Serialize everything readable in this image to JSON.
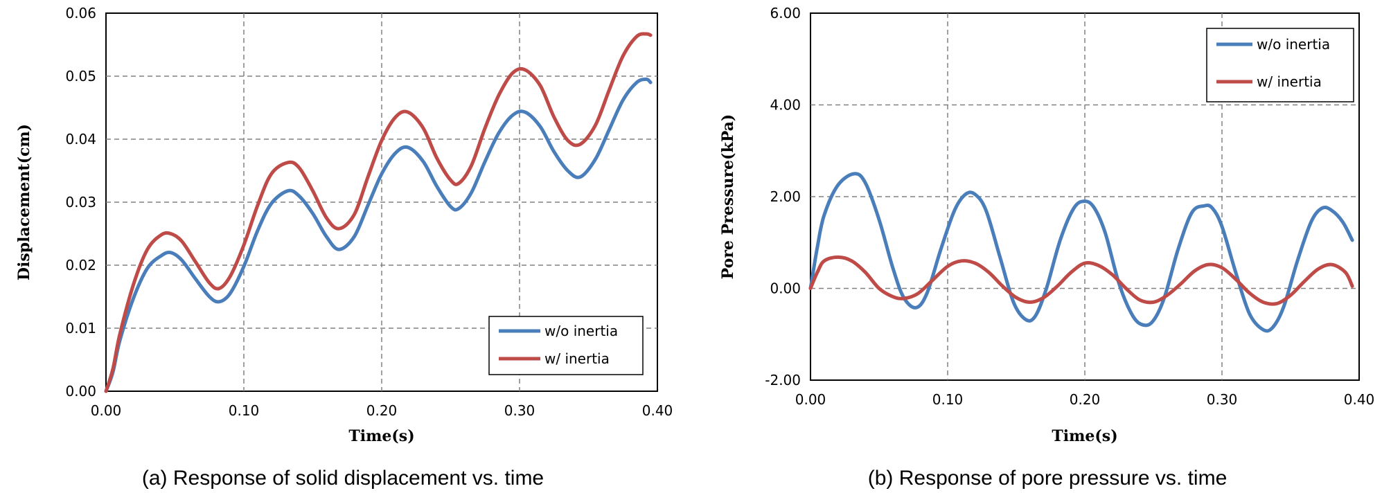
{
  "chart_data": [
    {
      "type": "line",
      "xlabel": "Time(s)",
      "ylabel": "Displacement(cm)",
      "caption": "(a) Response of solid displacement vs. time",
      "xlim": [
        0,
        0.4
      ],
      "ylim": [
        0,
        0.06
      ],
      "x_ticks": [
        "0.00",
        "0.10",
        "0.20",
        "0.30",
        "0.40"
      ],
      "y_ticks": [
        "0.00",
        "0.01",
        "0.02",
        "0.03",
        "0.04",
        "0.05",
        "0.06"
      ],
      "grid": true,
      "legend_position": "bottom-right",
      "series": [
        {
          "name": "w/o inertia",
          "color": "#4a7ebb",
          "x": [
            0,
            0.005,
            0.01,
            0.02,
            0.03,
            0.04,
            0.047,
            0.055,
            0.065,
            0.075,
            0.082,
            0.09,
            0.1,
            0.11,
            0.12,
            0.132,
            0.14,
            0.15,
            0.16,
            0.169,
            0.18,
            0.19,
            0.2,
            0.21,
            0.219,
            0.23,
            0.24,
            0.25,
            0.256,
            0.265,
            0.275,
            0.285,
            0.295,
            0.304,
            0.315,
            0.325,
            0.335,
            0.344,
            0.355,
            0.365,
            0.375,
            0.385,
            0.392,
            0.395
          ],
          "y": [
            0,
            0.003,
            0.008,
            0.0148,
            0.0195,
            0.0215,
            0.022,
            0.0208,
            0.0178,
            0.015,
            0.0142,
            0.0155,
            0.0198,
            0.0255,
            0.0298,
            0.0318,
            0.031,
            0.0282,
            0.0245,
            0.0225,
            0.0245,
            0.0295,
            0.0345,
            0.0378,
            0.0387,
            0.0365,
            0.0325,
            0.0293,
            0.029,
            0.0315,
            0.0365,
            0.041,
            0.0438,
            0.0443,
            0.042,
            0.038,
            0.035,
            0.034,
            0.0368,
            0.0415,
            0.0462,
            0.049,
            0.0495,
            0.049
          ]
        },
        {
          "name": "w/ inertia",
          "color": "#be4b48",
          "x": [
            0,
            0.005,
            0.01,
            0.02,
            0.03,
            0.04,
            0.047,
            0.055,
            0.065,
            0.075,
            0.082,
            0.09,
            0.1,
            0.11,
            0.12,
            0.132,
            0.14,
            0.15,
            0.16,
            0.169,
            0.18,
            0.19,
            0.2,
            0.21,
            0.219,
            0.23,
            0.24,
            0.25,
            0.256,
            0.265,
            0.275,
            0.285,
            0.295,
            0.304,
            0.315,
            0.325,
            0.335,
            0.344,
            0.355,
            0.365,
            0.375,
            0.385,
            0.392,
            0.395
          ],
          "y": [
            0,
            0.0035,
            0.009,
            0.017,
            0.0225,
            0.0248,
            0.025,
            0.0238,
            0.0205,
            0.0172,
            0.0163,
            0.0182,
            0.0232,
            0.0295,
            0.0345,
            0.0363,
            0.0355,
            0.0318,
            0.0275,
            0.0258,
            0.028,
            0.034,
            0.0398,
            0.0435,
            0.0443,
            0.0418,
            0.037,
            0.0335,
            0.033,
            0.0358,
            0.0418,
            0.047,
            0.0505,
            0.051,
            0.0485,
            0.0435,
            0.0398,
            0.0392,
            0.0422,
            0.0478,
            0.0532,
            0.0563,
            0.0567,
            0.0565
          ]
        }
      ]
    },
    {
      "type": "line",
      "xlabel": "Time(s)",
      "ylabel": "Pore Pressure(kPa)",
      "caption": "(b) Response of pore pressure vs. time",
      "xlim": [
        0,
        0.4
      ],
      "ylim": [
        -2,
        6
      ],
      "x_ticks": [
        "0.00",
        "0.10",
        "0.20",
        "0.30",
        "0.40"
      ],
      "y_ticks": [
        "-2.00",
        "0.00",
        "2.00",
        "4.00",
        "6.00"
      ],
      "grid": true,
      "legend_position": "top-right",
      "series": [
        {
          "name": "w/o inertia",
          "color": "#4a7ebb",
          "x": [
            0,
            0.005,
            0.01,
            0.02,
            0.032,
            0.04,
            0.05,
            0.06,
            0.068,
            0.077,
            0.085,
            0.095,
            0.105,
            0.113,
            0.12,
            0.128,
            0.138,
            0.148,
            0.157,
            0.164,
            0.172,
            0.182,
            0.192,
            0.2,
            0.207,
            0.215,
            0.225,
            0.235,
            0.243,
            0.25,
            0.258,
            0.268,
            0.278,
            0.287,
            0.293,
            0.3,
            0.31,
            0.32,
            0.33,
            0.337,
            0.345,
            0.355,
            0.365,
            0.373,
            0.38,
            0.388,
            0.395
          ],
          "y": [
            0,
            0.9,
            1.6,
            2.25,
            2.5,
            2.3,
            1.5,
            0.45,
            -0.2,
            -0.42,
            -0.1,
            0.85,
            1.7,
            2.05,
            2.05,
            1.7,
            0.7,
            -0.3,
            -0.68,
            -0.6,
            0.0,
            1.05,
            1.75,
            1.9,
            1.75,
            1.2,
            0.1,
            -0.6,
            -0.8,
            -0.7,
            -0.2,
            0.85,
            1.65,
            1.8,
            1.75,
            1.35,
            0.35,
            -0.55,
            -0.9,
            -0.85,
            -0.4,
            0.6,
            1.45,
            1.75,
            1.7,
            1.45,
            1.05
          ]
        },
        {
          "name": "w/ inertia",
          "color": "#be4b48",
          "x": [
            0,
            0.005,
            0.01,
            0.02,
            0.03,
            0.04,
            0.05,
            0.06,
            0.068,
            0.078,
            0.088,
            0.1,
            0.11,
            0.12,
            0.13,
            0.14,
            0.15,
            0.16,
            0.17,
            0.18,
            0.19,
            0.2,
            0.21,
            0.22,
            0.23,
            0.24,
            0.25,
            0.26,
            0.27,
            0.28,
            0.29,
            0.3,
            0.31,
            0.32,
            0.33,
            0.34,
            0.35,
            0.36,
            0.37,
            0.38,
            0.39,
            0.395
          ],
          "y": [
            0,
            0.35,
            0.6,
            0.68,
            0.6,
            0.35,
            0.0,
            -0.18,
            -0.22,
            -0.12,
            0.15,
            0.48,
            0.6,
            0.55,
            0.35,
            0.05,
            -0.2,
            -0.3,
            -0.2,
            0.05,
            0.35,
            0.55,
            0.5,
            0.3,
            0.0,
            -0.25,
            -0.3,
            -0.15,
            0.1,
            0.38,
            0.52,
            0.45,
            0.2,
            -0.1,
            -0.3,
            -0.33,
            -0.15,
            0.15,
            0.42,
            0.52,
            0.35,
            0.05
          ]
        }
      ]
    }
  ]
}
